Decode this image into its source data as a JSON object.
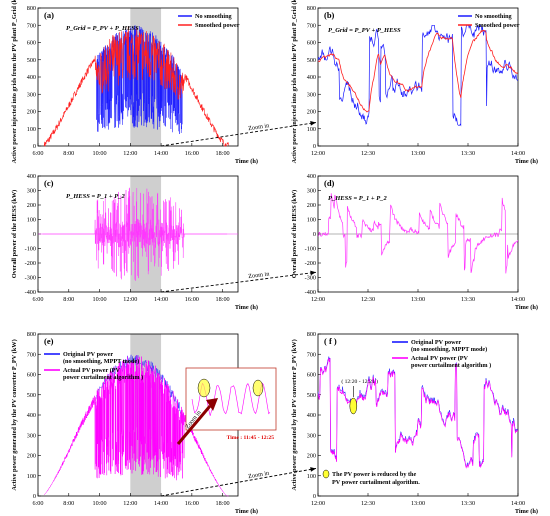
{
  "chart_data": [
    {
      "panel": "(a)",
      "type": "line",
      "ylabel": "Active power injected into grids from the PV plant P_Grid (kW)",
      "xlabel": "Time (h)",
      "x_ticks": [
        "6:00",
        "8:00",
        "10:00",
        "12:00",
        "14:00",
        "16:00",
        "18:00"
      ],
      "y_ticks": [
        "0",
        "100",
        "200",
        "300",
        "400",
        "500",
        "600",
        "700",
        "800"
      ],
      "xlim": [
        6,
        19
      ],
      "ylim": [
        0,
        800
      ],
      "annotation": "P_Grid = P_PV + P_HESS",
      "highlight_range": [
        "12:00",
        "14:00"
      ],
      "zoom_label": "Zoom in",
      "series": [
        {
          "name": "No smoothing",
          "color": "#1a1aff"
        },
        {
          "name": "Smoothed power",
          "color": "#ff2020"
        }
      ]
    },
    {
      "panel": "(b)",
      "type": "line",
      "ylabel": "Active power injected into grids from the PV plant P_Grid (kW)",
      "xlabel": "Time (h)",
      "x_ticks": [
        "12:00",
        "12:30",
        "13:00",
        "13:30",
        "14:00"
      ],
      "y_ticks": [
        "0",
        "100",
        "200",
        "300",
        "400",
        "500",
        "600",
        "700",
        "800"
      ],
      "xlim": [
        12,
        14
      ],
      "ylim": [
        0,
        800
      ],
      "annotation": "P_Grid = P_PV + P_HESS",
      "series": [
        {
          "name": "No smoothing",
          "color": "#1a1aff"
        },
        {
          "name": "Smoothed power",
          "color": "#ff2020"
        }
      ]
    },
    {
      "panel": "(c)",
      "type": "line",
      "ylabel": "Overall power of the HESS (kW)",
      "xlabel": "Time (h)",
      "x_ticks": [
        "6:00",
        "8:00",
        "10:00",
        "12:00",
        "14:00",
        "16:00",
        "18:00"
      ],
      "y_ticks": [
        "-400",
        "-300",
        "-200",
        "-100",
        "0",
        "100",
        "200",
        "300",
        "400"
      ],
      "xlim": [
        6,
        19
      ],
      "ylim": [
        -400,
        400
      ],
      "annotation": "P_HESS = P_1 + P_2",
      "highlight_range": [
        "12:00",
        "14:00"
      ],
      "zoom_label": "Zoom in",
      "series": [
        {
          "name": "",
          "color": "#ff33ff"
        }
      ]
    },
    {
      "panel": "(d)",
      "type": "line",
      "ylabel": "Overall power of the HESS (kW)",
      "xlabel": "Time (h)",
      "x_ticks": [
        "12:00",
        "12:30",
        "13:00",
        "13:30",
        "14:00"
      ],
      "y_ticks": [
        "-400",
        "-300",
        "-200",
        "-100",
        "0",
        "100",
        "200",
        "300",
        "400"
      ],
      "xlim": [
        12,
        14
      ],
      "ylim": [
        -400,
        400
      ],
      "annotation": "P_HESS = P_1 + P_2",
      "series": [
        {
          "name": "",
          "color": "#ff33ff"
        }
      ]
    },
    {
      "panel": "(e)",
      "type": "line",
      "ylabel": "Active power generated by the PV converter P_PV (kW)",
      "xlabel": "Time (h)",
      "x_ticks": [
        "6:00",
        "8:00",
        "10:00",
        "12:00",
        "14:00",
        "16:00",
        "18:00"
      ],
      "y_ticks": [
        "0",
        "100",
        "200",
        "300",
        "400",
        "500",
        "600",
        "700",
        "800"
      ],
      "xlim": [
        6,
        19
      ],
      "ylim": [
        0,
        800
      ],
      "highlight_range": [
        "12:00",
        "14:00"
      ],
      "zoom_label": "Zoom in",
      "inset_zoom_label": "Zoom in",
      "inset_time": "Time : 11:45 - 12:25",
      "series": [
        {
          "name": "Original PV power  (no smoothing, MPPT mode)",
          "color": "#1a1aff"
        },
        {
          "name": "Actual PV power (PV power curtailment algorithm )",
          "color": "#ff00ff"
        }
      ]
    },
    {
      "panel": "( f )",
      "type": "line",
      "ylabel": "Active power generated by the PV converter P_PV (kW)",
      "xlabel": "Time (h)",
      "x_ticks": [
        "12:00",
        "12:30",
        "13:00",
        "13:30",
        "14:00"
      ],
      "y_ticks": [
        "0",
        "100",
        "200",
        "300",
        "400",
        "500",
        "600",
        "700",
        "800"
      ],
      "xlim": [
        12,
        14
      ],
      "ylim": [
        0,
        800
      ],
      "callout": "( 12:20 - 12:21 )",
      "note": "The PV power is reduced by the PV power curtailment algorithm.",
      "series": [
        {
          "name": "Original PV power  (no smoothing, MPPT mode)",
          "color": "#1a1aff"
        },
        {
          "name": "Actual PV power (PV power curtailment algorithm )",
          "color": "#ff00ff"
        }
      ]
    }
  ]
}
